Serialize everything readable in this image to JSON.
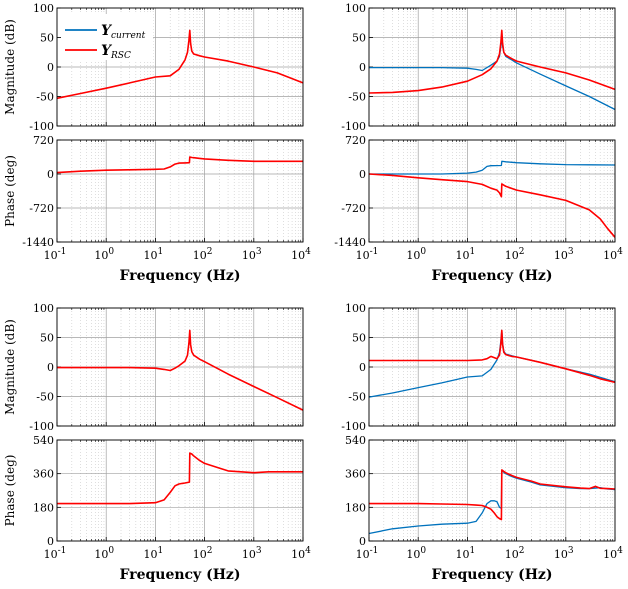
{
  "chart_data": [
    {
      "type": "line",
      "panel": "A-magnitude",
      "xscale": "log",
      "xlim": [
        0.1,
        10000
      ],
      "ylim": [
        -100,
        100
      ],
      "yticks": [
        -100,
        -50,
        0,
        50,
        100
      ],
      "ylabel": "Magnitude (dB)",
      "xlabel": "",
      "grid": true,
      "legend": {
        "placement": "top-left",
        "entries": [
          {
            "name": "Y",
            "sub": "current",
            "color": "#0072bd"
          },
          {
            "name": "Y",
            "sub": "RSC",
            "color": "#ff0000"
          }
        ]
      },
      "series": [
        {
          "name": "Y_RSC",
          "color": "#ff0000",
          "x": [
            0.1,
            0.3,
            1,
            3,
            10,
            20,
            30,
            40,
            45,
            48,
            50,
            52,
            55,
            60,
            80,
            100,
            300,
            1000,
            3000,
            10000
          ],
          "y": [
            -53,
            -45,
            -36,
            -27,
            -17,
            -15,
            -4,
            12,
            25,
            45,
            62,
            40,
            27,
            22,
            19,
            17,
            10,
            0,
            -10,
            -27
          ]
        }
      ]
    },
    {
      "type": "line",
      "panel": "A-phase",
      "xscale": "log",
      "xlim": [
        0.1,
        10000
      ],
      "ylim": [
        -1440,
        720
      ],
      "yticks": [
        -1440,
        -720,
        0,
        720
      ],
      "ylabel": "Phase (deg)",
      "xlabel": "Frequency (Hz)",
      "xticks": [
        "10^-1",
        "10^0",
        "10^1",
        "10^2",
        "10^3",
        "10^4"
      ],
      "grid": true,
      "series": [
        {
          "name": "Y_RSC",
          "color": "#ff0000",
          "x": [
            0.1,
            0.3,
            1,
            3,
            10,
            15,
            20,
            25,
            30,
            40,
            49,
            50,
            55,
            60,
            80,
            100,
            300,
            1000,
            3000,
            10000
          ],
          "y": [
            30,
            60,
            80,
            90,
            100,
            105,
            150,
            210,
            230,
            235,
            240,
            360,
            350,
            345,
            330,
            320,
            290,
            270,
            270,
            270
          ]
        }
      ]
    },
    {
      "type": "line",
      "panel": "B-magnitude",
      "xscale": "log",
      "xlim": [
        0.1,
        10000
      ],
      "ylim": [
        -100,
        100
      ],
      "yticks": [
        -100,
        -50,
        0,
        50,
        100
      ],
      "ylabel": "",
      "xlabel": "",
      "grid": true,
      "series": [
        {
          "name": "Y_current",
          "color": "#0072bd",
          "x": [
            0.1,
            1,
            3,
            10,
            15,
            20,
            30,
            40,
            45,
            48,
            50,
            52,
            55,
            60,
            80,
            100,
            300,
            1000,
            3000,
            10000
          ],
          "y": [
            -1,
            -1,
            -1,
            -2,
            -4,
            -6,
            3,
            10,
            18,
            35,
            55,
            35,
            25,
            18,
            12,
            7,
            -12,
            -32,
            -50,
            -72
          ]
        },
        {
          "name": "Y_RSC",
          "color": "#ff0000",
          "x": [
            0.1,
            0.3,
            1,
            3,
            10,
            20,
            30,
            40,
            45,
            48,
            50,
            52,
            55,
            60,
            80,
            100,
            300,
            1000,
            3000,
            10000
          ],
          "y": [
            -44,
            -43,
            -40,
            -34,
            -24,
            -13,
            -3,
            10,
            22,
            42,
            62,
            40,
            25,
            20,
            14,
            10,
            0,
            -10,
            -22,
            -38
          ]
        }
      ]
    },
    {
      "type": "line",
      "panel": "B-phase",
      "xscale": "log",
      "xlim": [
        0.1,
        10000
      ],
      "ylim": [
        -1440,
        720
      ],
      "yticks": [
        -1440,
        -720,
        0,
        720
      ],
      "ylabel": "",
      "xlabel": "Frequency (Hz)",
      "xticks": [
        "10^-1",
        "10^0",
        "10^1",
        "10^2",
        "10^3",
        "10^4"
      ],
      "grid": true,
      "series": [
        {
          "name": "Y_current",
          "color": "#0072bd",
          "x": [
            0.1,
            1,
            3,
            10,
            15,
            20,
            25,
            30,
            49,
            50,
            55,
            60,
            80,
            100,
            300,
            1000,
            3000,
            10000
          ],
          "y": [
            0,
            0,
            0,
            20,
            40,
            80,
            160,
            175,
            180,
            270,
            265,
            258,
            248,
            240,
            215,
            200,
            195,
            190
          ]
        },
        {
          "name": "Y_RSC",
          "color": "#ff0000",
          "x": [
            0.1,
            0.3,
            1,
            3,
            10,
            20,
            30,
            40,
            45,
            49,
            50,
            60,
            100,
            300,
            1000,
            3000,
            5000,
            7000,
            10000
          ],
          "y": [
            0,
            -30,
            -80,
            -120,
            -160,
            -220,
            -300,
            -340,
            -400,
            -480,
            -210,
            -260,
            -340,
            -440,
            -560,
            -760,
            -950,
            -1150,
            -1340
          ]
        }
      ]
    },
    {
      "type": "line",
      "panel": "C-magnitude",
      "xscale": "log",
      "xlim": [
        0.1,
        10000
      ],
      "ylim": [
        -100,
        100
      ],
      "yticks": [
        -100,
        -50,
        0,
        50,
        100
      ],
      "ylabel": "Magnitude (dB)",
      "xlabel": "",
      "grid": true,
      "series": [
        {
          "name": "Y_RSC",
          "color": "#ff0000",
          "x": [
            0.1,
            1,
            3,
            10,
            15,
            20,
            25,
            30,
            40,
            45,
            48,
            50,
            52,
            55,
            60,
            80,
            100,
            300,
            1000,
            3000,
            10000
          ],
          "y": [
            -1,
            -1,
            -1,
            -2,
            -4,
            -6,
            -2,
            2,
            10,
            20,
            40,
            62,
            38,
            26,
            20,
            13,
            9,
            -12,
            -33,
            -52,
            -73
          ]
        }
      ]
    },
    {
      "type": "line",
      "panel": "C-phase",
      "xscale": "log",
      "xlim": [
        0.1,
        10000
      ],
      "ylim": [
        0,
        540
      ],
      "yticks": [
        0,
        180,
        360,
        540
      ],
      "ylabel": "Phase (deg)",
      "xlabel": "Frequency (Hz)",
      "xticks": [
        "10^-1",
        "10^0",
        "10^1",
        "10^2",
        "10^3",
        "10^4"
      ],
      "grid": true,
      "series": [
        {
          "name": "Y_RSC",
          "color": "#ff0000",
          "x": [
            0.1,
            1,
            3,
            10,
            15,
            20,
            25,
            30,
            35,
            40,
            49,
            50,
            55,
            60,
            80,
            100,
            200,
            300,
            1000,
            2000,
            3000,
            10000
          ],
          "y": [
            200,
            200,
            200,
            205,
            220,
            260,
            295,
            305,
            308,
            310,
            315,
            470,
            465,
            455,
            430,
            415,
            390,
            375,
            365,
            370,
            370,
            370
          ]
        }
      ]
    },
    {
      "type": "line",
      "panel": "D-magnitude",
      "xscale": "log",
      "xlim": [
        0.1,
        10000
      ],
      "ylim": [
        -100,
        100
      ],
      "yticks": [
        -100,
        -50,
        0,
        50,
        100
      ],
      "ylabel": "",
      "xlabel": "",
      "grid": true,
      "series": [
        {
          "name": "Y_current",
          "color": "#0072bd",
          "x": [
            0.1,
            0.3,
            1,
            3,
            10,
            20,
            30,
            40,
            45,
            48,
            50,
            52,
            55,
            60,
            80,
            100,
            300,
            1000,
            3000,
            10000
          ],
          "y": [
            -51,
            -44,
            -35,
            -27,
            -17,
            -15,
            -4,
            12,
            25,
            45,
            62,
            40,
            27,
            22,
            19,
            17,
            8,
            -3,
            -12,
            -25
          ]
        },
        {
          "name": "Y_RSC",
          "color": "#ff0000",
          "x": [
            0.1,
            1,
            3,
            10,
            20,
            25,
            30,
            35,
            40,
            45,
            48,
            50,
            52,
            55,
            60,
            80,
            100,
            300,
            1000,
            3000,
            5000,
            10000
          ],
          "y": [
            11,
            11,
            11,
            11,
            12,
            14,
            18,
            16,
            14,
            20,
            40,
            62,
            38,
            25,
            21,
            18,
            17,
            8,
            -3,
            -14,
            -20,
            -26
          ]
        }
      ]
    },
    {
      "type": "line",
      "panel": "D-phase",
      "xscale": "log",
      "xlim": [
        0.1,
        10000
      ],
      "ylim": [
        0,
        540
      ],
      "yticks": [
        0,
        180,
        360,
        540
      ],
      "ylabel": "",
      "xlabel": "Frequency (Hz)",
      "xticks": [
        "10^-1",
        "10^0",
        "10^1",
        "10^2",
        "10^3",
        "10^4"
      ],
      "grid": true,
      "series": [
        {
          "name": "Y_current",
          "color": "#0072bd",
          "x": [
            0.1,
            0.3,
            1,
            3,
            10,
            15,
            20,
            25,
            30,
            35,
            40,
            45,
            49,
            50,
            55,
            60,
            80,
            100,
            200,
            300,
            1000,
            2000,
            3000,
            5000,
            7000,
            10000
          ],
          "y": [
            40,
            65,
            80,
            90,
            95,
            105,
            150,
            200,
            215,
            215,
            210,
            180,
            175,
            375,
            368,
            360,
            345,
            335,
            315,
            300,
            285,
            280,
            280,
            285,
            278,
            275
          ]
        },
        {
          "name": "Y_RSC",
          "color": "#ff0000",
          "x": [
            0.1,
            0.3,
            1,
            3,
            10,
            15,
            20,
            25,
            30,
            35,
            40,
            45,
            49,
            50,
            55,
            60,
            80,
            100,
            200,
            300,
            1000,
            2000,
            3000,
            4000,
            5000,
            7000,
            10000
          ],
          "y": [
            200,
            200,
            200,
            198,
            195,
            192,
            190,
            180,
            170,
            150,
            130,
            120,
            115,
            380,
            372,
            365,
            350,
            340,
            320,
            305,
            290,
            283,
            280,
            292,
            282,
            280,
            278
          ]
        }
      ]
    }
  ]
}
